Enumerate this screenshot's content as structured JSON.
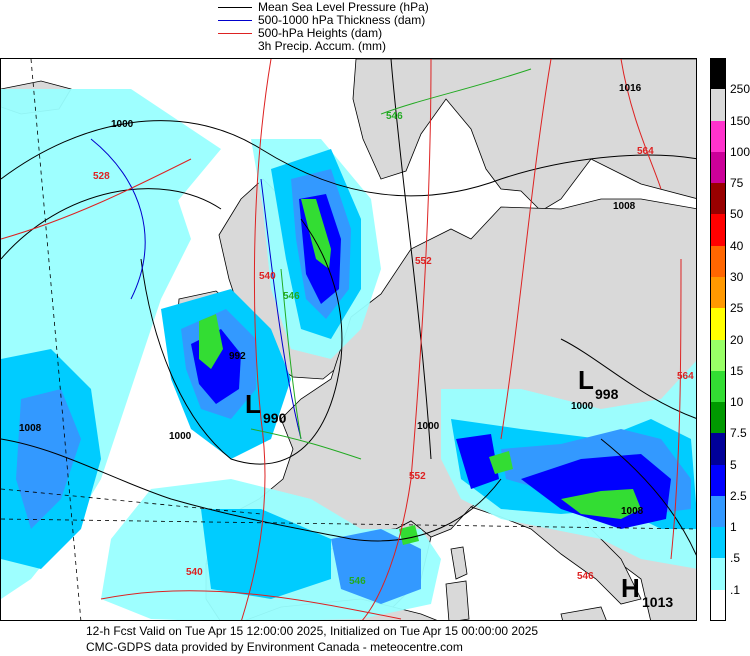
{
  "legend": [
    {
      "label": "Mean Sea Level Pressure (hPa)",
      "color": "#000000"
    },
    {
      "label": "500-1000 hPa Thickness (dam)",
      "color": "#0000cc"
    },
    {
      "label": "500-hPa Heights (dam)",
      "color": "#dd2222"
    },
    {
      "label": "3h Precip. Accum. (mm)",
      "color": ""
    }
  ],
  "colorbar": {
    "levels": [
      "250",
      "150",
      "100",
      "75",
      "50",
      "40",
      "30",
      "25",
      "20",
      "15",
      "10",
      "7.5",
      "5",
      "2.5",
      "1",
      ".5",
      ".1"
    ],
    "colors": [
      "#000000",
      "#d9d9d9",
      "#ff33cc",
      "#cc0099",
      "#990000",
      "#ff0000",
      "#ff6600",
      "#ff9900",
      "#ffff00",
      "#99ff66",
      "#33dd33",
      "#009900",
      "#000099",
      "#0000ff",
      "#3399ff",
      "#00ccff",
      "#99ffff",
      "#ffffff"
    ]
  },
  "map": {
    "pressure_labels": [
      "1000",
      "1016",
      "1008",
      "992",
      "1000",
      "1008",
      "1000",
      "1000",
      "1008"
    ],
    "thickness_labels": [
      "546",
      "546",
      "546"
    ],
    "height_labels": [
      "528",
      "540",
      "552",
      "552",
      "564",
      "564",
      "546",
      "540"
    ],
    "systems": [
      {
        "symbol": "L",
        "value": "990"
      },
      {
        "symbol": "L",
        "value": "998"
      },
      {
        "symbol": "H",
        "value": "1013"
      }
    ]
  },
  "footer": {
    "line1": "12-h Fcst Valid on Tue Apr 15 12:00:00 2025, Initialized on Tue Apr 15 00:00:00 2025",
    "line2": "CMC-GDPS data provided by Environment Canada - meteocentre.com"
  }
}
